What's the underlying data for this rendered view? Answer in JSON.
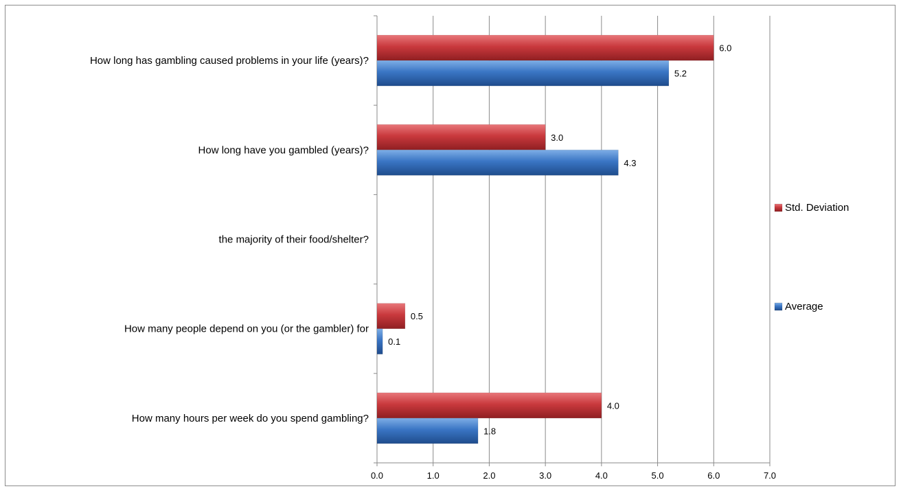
{
  "chart_data": {
    "type": "bar",
    "orientation": "horizontal",
    "title": "",
    "xlabel": "",
    "ylabel": "",
    "xlim": [
      0,
      7
    ],
    "x_ticks": [
      "0.0",
      "1.0",
      "2.0",
      "3.0",
      "4.0",
      "5.0",
      "6.0",
      "7.0"
    ],
    "grid": "vertical",
    "legend_position": "right",
    "categories": [
      "How long has gambling caused problems in your life (years)?",
      "How long have you gambled (years)?",
      "the majority of their food/shelter?",
      "How many people depend on you (or the gambler) for",
      "How many hours per week do you spend gambling?"
    ],
    "series": [
      {
        "name": "Std. Deviation",
        "color": "#c0393c",
        "values": [
          6.0,
          3.0,
          null,
          0.5,
          4.0
        ],
        "labels": [
          "6.0",
          "3.0",
          "",
          "0.5",
          "4.0"
        ]
      },
      {
        "name": "Average",
        "color": "#3a75c4",
        "values": [
          5.2,
          4.3,
          null,
          0.1,
          1.8
        ],
        "labels": [
          "5.2",
          "4.3",
          "",
          "0.1",
          "1.8"
        ]
      }
    ]
  }
}
